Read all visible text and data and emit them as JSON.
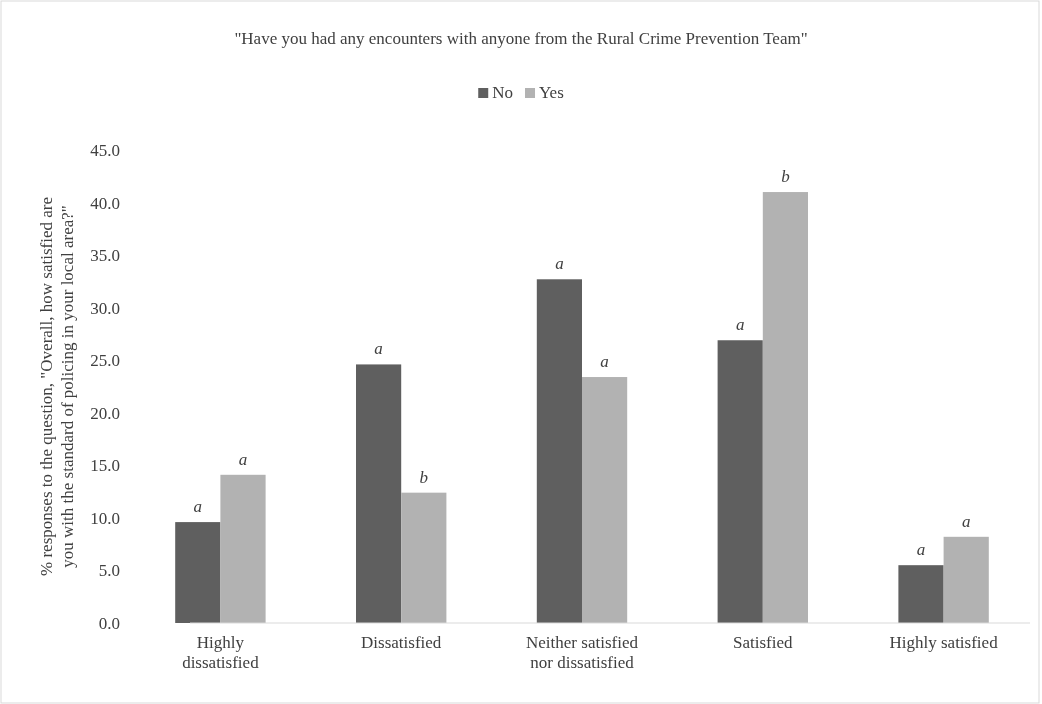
{
  "chart_data": {
    "type": "bar",
    "title": "\"Have you had any encounters with anyone from the Rural Crime Prevention Team\"",
    "ylabel": "% responses to the question, \"Overall, how satisfied are you with the standard of policing in your local area?\"",
    "categories": [
      "Highly dissatisfied",
      "Dissatisfied",
      "Neither satisfied nor dissatisfied",
      "Satisfied",
      "Highly satisfied"
    ],
    "series": [
      {
        "name": "No",
        "color": "#5f5f5f",
        "values": [
          9.6,
          24.6,
          32.7,
          26.9,
          5.5
        ],
        "value_labels": [
          "a",
          "a",
          "a",
          "a",
          "a"
        ]
      },
      {
        "name": "Yes",
        "color": "#b2b2b2",
        "values": [
          14.1,
          12.4,
          23.4,
          41.0,
          8.2
        ],
        "value_labels": [
          "a",
          "b",
          "a",
          "b",
          "a"
        ]
      }
    ],
    "ylim": [
      0,
      45
    ],
    "yticks": [
      {
        "value": 0,
        "label": "0.0"
      },
      {
        "value": 5,
        "label": "5.0"
      },
      {
        "value": 10,
        "label": "10.0"
      },
      {
        "value": 15,
        "label": "15.0"
      },
      {
        "value": 20,
        "label": "20.0"
      },
      {
        "value": 25,
        "label": "25.0"
      },
      {
        "value": 30,
        "label": "30.0"
      },
      {
        "value": 35,
        "label": "35.0"
      },
      {
        "value": 40,
        "label": "40.0"
      },
      {
        "value": 45,
        "label": "45.0"
      }
    ],
    "legend": "top"
  }
}
